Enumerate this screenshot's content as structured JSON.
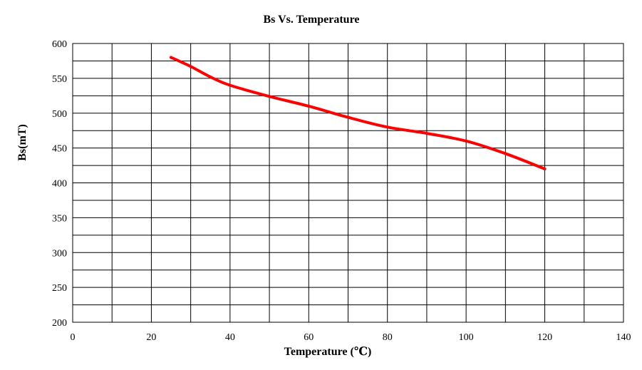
{
  "chart_data": {
    "type": "line",
    "title": "Bs Vs. Temperature",
    "xlabel": "Temperature (℃)",
    "ylabel": "Bs(mT)",
    "xlim": [
      0,
      140
    ],
    "ylim": [
      200,
      600
    ],
    "x_major_ticks": [
      0,
      20,
      40,
      60,
      80,
      100,
      120,
      140
    ],
    "y_major_ticks": [
      200,
      250,
      300,
      350,
      400,
      450,
      500,
      550,
      600
    ],
    "x_grid_step": 10,
    "y_grid_step": 25,
    "grid": true,
    "legend": "none",
    "series": [
      {
        "color": "#ff0000",
        "x": [
          25,
          30,
          35,
          40,
          50,
          60,
          70,
          80,
          90,
          100,
          110,
          120
        ],
        "y": [
          580,
          567,
          552,
          540,
          524,
          510,
          494,
          480,
          471,
          460,
          442,
          420
        ]
      }
    ]
  }
}
